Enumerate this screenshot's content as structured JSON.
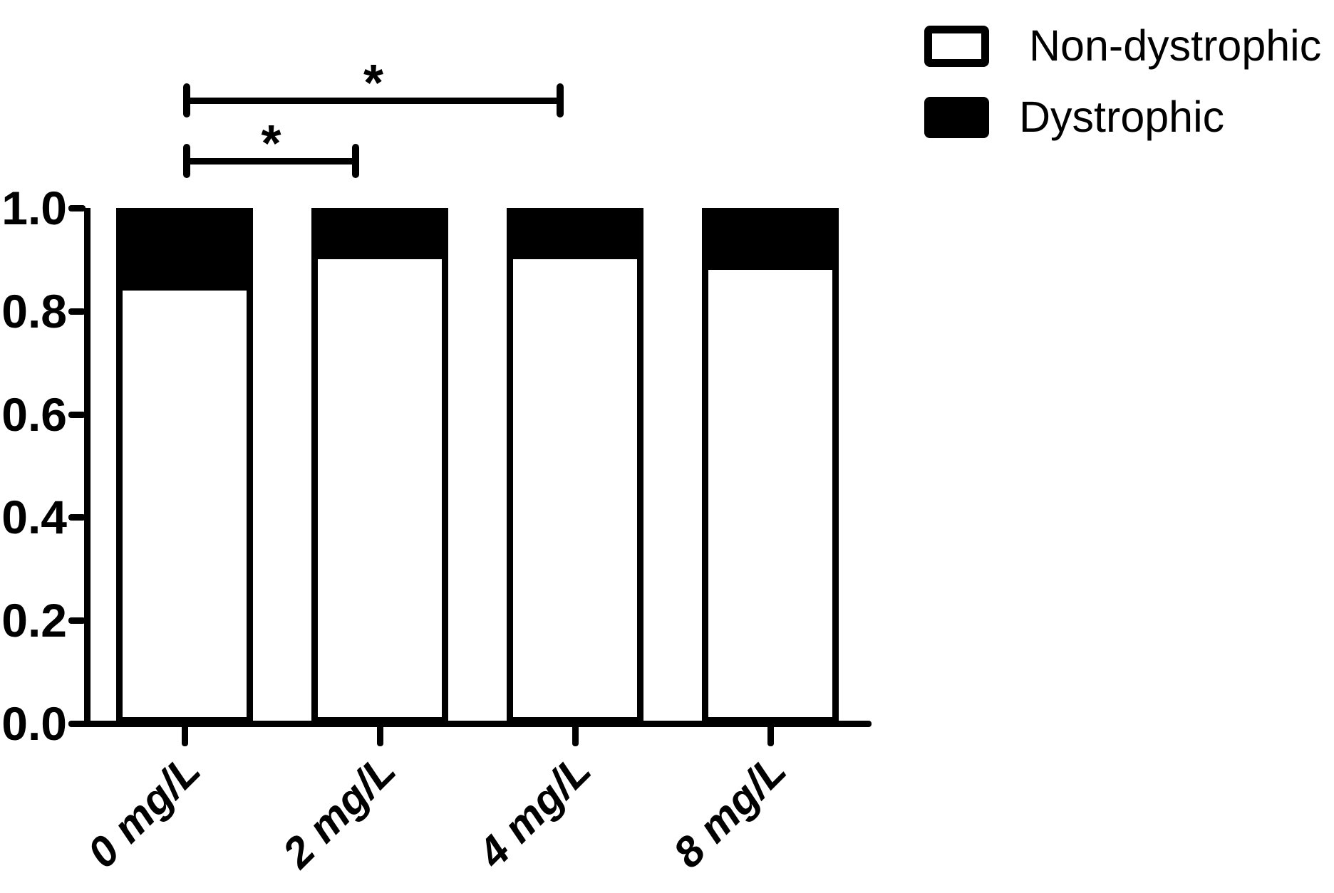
{
  "legend": {
    "items": [
      {
        "label": "Non-dystrophic",
        "swatch": "open-white-box"
      },
      {
        "label": "Dystrophic",
        "swatch": "filled-black-box"
      }
    ]
  },
  "chart_data": {
    "type": "bar",
    "stacked": true,
    "title": "",
    "xlabel": "",
    "ylabel": "",
    "categories": [
      "0 mg/L",
      "2 mg/L",
      "4 mg/L",
      "8 mg/L"
    ],
    "series": [
      {
        "name": "Non-dystrophic",
        "color": "#ffffff",
        "values": [
          0.84,
          0.9,
          0.9,
          0.88
        ]
      },
      {
        "name": "Dystrophic",
        "color": "#000000",
        "values": [
          0.16,
          0.1,
          0.1,
          0.12
        ]
      }
    ],
    "ylim": [
      0.0,
      1.0
    ],
    "yticks": [
      "0.0",
      "0.2",
      "0.4",
      "0.6",
      "0.8",
      "1.0"
    ],
    "grid": false,
    "legend_position": "top-right",
    "significance_brackets": [
      {
        "from": "0 mg/L",
        "to": "2 mg/L",
        "label": "*"
      },
      {
        "from": "0 mg/L",
        "to": "4 mg/L",
        "label": "*"
      }
    ]
  },
  "colors": {
    "foreground": "#000000",
    "background": "#ffffff"
  }
}
